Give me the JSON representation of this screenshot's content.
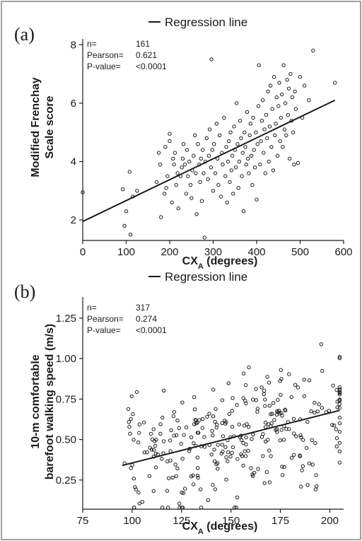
{
  "chart_data": [
    {
      "panel": "(a)",
      "type": "scatter",
      "legend": "Regression line",
      "legend_position": "top-right",
      "grid": false,
      "xlabel": "CX",
      "xlabel_sub": "A",
      "xlabel_unit": "(degrees)",
      "ylabel": [
        "Modified Frenchay",
        "Scale score"
      ],
      "xlim": [
        0,
        600
      ],
      "ylim": [
        1.3,
        8.2
      ],
      "xticks": [
        0,
        100,
        200,
        300,
        400,
        500,
        600
      ],
      "yticks": [
        2,
        4,
        6,
        8
      ],
      "stats": [
        {
          "label": "n=",
          "value": "161"
        },
        {
          "label": "Pearson=",
          "value": "0.621"
        },
        {
          "label": "P-value=",
          "value": "<0.0001"
        }
      ],
      "regression": {
        "x": [
          0,
          580
        ],
        "y": [
          1.95,
          6.1
        ]
      },
      "points": [
        [
          0,
          2.95
        ],
        [
          92,
          3.05
        ],
        [
          96,
          1.8
        ],
        [
          100,
          2.3
        ],
        [
          108,
          3.65
        ],
        [
          110,
          1.5
        ],
        [
          115,
          2.8
        ],
        [
          125,
          3.0
        ],
        [
          170,
          3.3
        ],
        [
          175,
          4.3
        ],
        [
          178,
          3.9
        ],
        [
          180,
          2.1
        ],
        [
          188,
          2.9
        ],
        [
          190,
          4.5
        ],
        [
          192,
          3.1
        ],
        [
          195,
          3.5
        ],
        [
          200,
          4.95
        ],
        [
          200,
          4.7
        ],
        [
          205,
          2.6
        ],
        [
          208,
          4.1
        ],
        [
          210,
          3.9
        ],
        [
          212,
          4.3
        ],
        [
          215,
          3.2
        ],
        [
          218,
          3.6
        ],
        [
          220,
          2.4
        ],
        [
          225,
          3.5
        ],
        [
          228,
          3.8
        ],
        [
          230,
          4.1
        ],
        [
          232,
          4.6
        ],
        [
          235,
          3.9
        ],
        [
          238,
          2.9
        ],
        [
          240,
          4.4
        ],
        [
          242,
          3.5
        ],
        [
          245,
          4.0
        ],
        [
          248,
          3.2
        ],
        [
          250,
          2.75
        ],
        [
          252,
          3.7
        ],
        [
          255,
          4.2
        ],
        [
          258,
          4.9
        ],
        [
          260,
          3.6
        ],
        [
          262,
          2.2
        ],
        [
          265,
          4.6
        ],
        [
          268,
          3.9
        ],
        [
          270,
          3.3
        ],
        [
          272,
          4.1
        ],
        [
          274,
          2.65
        ],
        [
          276,
          4.4
        ],
        [
          278,
          3.6
        ],
        [
          280,
          1.4
        ],
        [
          282,
          4.0
        ],
        [
          285,
          4.8
        ],
        [
          288,
          3.4
        ],
        [
          290,
          4.2
        ],
        [
          292,
          5.1
        ],
        [
          295,
          3.8
        ],
        [
          296,
          7.5
        ],
        [
          298,
          4.4
        ],
        [
          300,
          3.0
        ],
        [
          302,
          4.6
        ],
        [
          305,
          3.6
        ],
        [
          308,
          5.3
        ],
        [
          310,
          4.1
        ],
        [
          312,
          3.2
        ],
        [
          315,
          4.9
        ],
        [
          318,
          2.8
        ],
        [
          320,
          4.3
        ],
        [
          322,
          3.9
        ],
        [
          325,
          5.5
        ],
        [
          328,
          3.5
        ],
        [
          330,
          4.5
        ],
        [
          332,
          2.6
        ],
        [
          334,
          4.0
        ],
        [
          336,
          4.7
        ],
        [
          338,
          3.3
        ],
        [
          340,
          5.0
        ],
        [
          342,
          3.7
        ],
        [
          344,
          4.2
        ],
        [
          346,
          2.9
        ],
        [
          348,
          5.2
        ],
        [
          350,
          4.4
        ],
        [
          352,
          3.8
        ],
        [
          354,
          6.0
        ],
        [
          356,
          4.6
        ],
        [
          358,
          3.1
        ],
        [
          360,
          4.0
        ],
        [
          362,
          5.4
        ],
        [
          364,
          4.8
        ],
        [
          366,
          3.5
        ],
        [
          368,
          4.3
        ],
        [
          370,
          2.3
        ],
        [
          372,
          5.0
        ],
        [
          374,
          4.5
        ],
        [
          376,
          3.9
        ],
        [
          378,
          5.7
        ],
        [
          380,
          4.1
        ],
        [
          382,
          3.6
        ],
        [
          384,
          4.9
        ],
        [
          386,
          5.3
        ],
        [
          388,
          4.2
        ],
        [
          390,
          3.2
        ],
        [
          392,
          5.5
        ],
        [
          394,
          4.4
        ],
        [
          396,
          3.8
        ],
        [
          398,
          5.0
        ],
        [
          400,
          2.7
        ],
        [
          402,
          4.6
        ],
        [
          404,
          5.9
        ],
        [
          405,
          7.3
        ],
        [
          408,
          3.9
        ],
        [
          410,
          4.7
        ],
        [
          412,
          5.4
        ],
        [
          414,
          6.1
        ],
        [
          416,
          4.3
        ],
        [
          418,
          5.1
        ],
        [
          420,
          3.6
        ],
        [
          422,
          5.6
        ],
        [
          424,
          4.8
        ],
        [
          426,
          6.4
        ],
        [
          428,
          4.0
        ],
        [
          430,
          5.2
        ],
        [
          432,
          6.6
        ],
        [
          434,
          4.5
        ],
        [
          436,
          5.8
        ],
        [
          438,
          3.7
        ],
        [
          440,
          6.9
        ],
        [
          442,
          4.9
        ],
        [
          444,
          5.3
        ],
        [
          446,
          6.2
        ],
        [
          448,
          4.2
        ],
        [
          450,
          5.9
        ],
        [
          452,
          6.7
        ],
        [
          454,
          4.7
        ],
        [
          456,
          5.5
        ],
        [
          458,
          6.3
        ],
        [
          460,
          4.5
        ],
        [
          462,
          7.3
        ],
        [
          464,
          5.1
        ],
        [
          466,
          6.0
        ],
        [
          468,
          4.9
        ],
        [
          470,
          6.8
        ],
        [
          472,
          5.6
        ],
        [
          474,
          6.5
        ],
        [
          476,
          4.1
        ],
        [
          478,
          7.0
        ],
        [
          480,
          5.4
        ],
        [
          482,
          6.2
        ],
        [
          484,
          5.0
        ],
        [
          486,
          3.9
        ],
        [
          488,
          6.4
        ],
        [
          490,
          5.8
        ],
        [
          495,
          3.95
        ],
        [
          500,
          6.9
        ],
        [
          505,
          5.5
        ],
        [
          510,
          6.6
        ],
        [
          520,
          6.1
        ],
        [
          530,
          7.8
        ],
        [
          580,
          6.7
        ]
      ]
    },
    {
      "panel": "(b)",
      "type": "scatter",
      "legend": "Regression line",
      "legend_position": "top-right",
      "grid": false,
      "xlabel": "CX",
      "xlabel_sub": "A",
      "xlabel_unit": "(degrees)",
      "ylabel": [
        "10-m comfortable",
        "barefoot walking speed (m/s)"
      ],
      "xlim": [
        75,
        207
      ],
      "ylim": [
        0.07,
        1.38
      ],
      "xticks": [
        75,
        100,
        125,
        150,
        175,
        200
      ],
      "yticks": [
        "0.25",
        "0.50",
        "0.75",
        "1.00",
        "1.25"
      ],
      "stats": [
        {
          "label": "n=",
          "value": "317"
        },
        {
          "label": "Pearson=",
          "value": "0.274"
        },
        {
          "label": "P-value=",
          "value": "<0.0001"
        }
      ],
      "regression": {
        "x": [
          95,
          205
        ],
        "y": [
          0.34,
          0.68
        ]
      }
    }
  ]
}
